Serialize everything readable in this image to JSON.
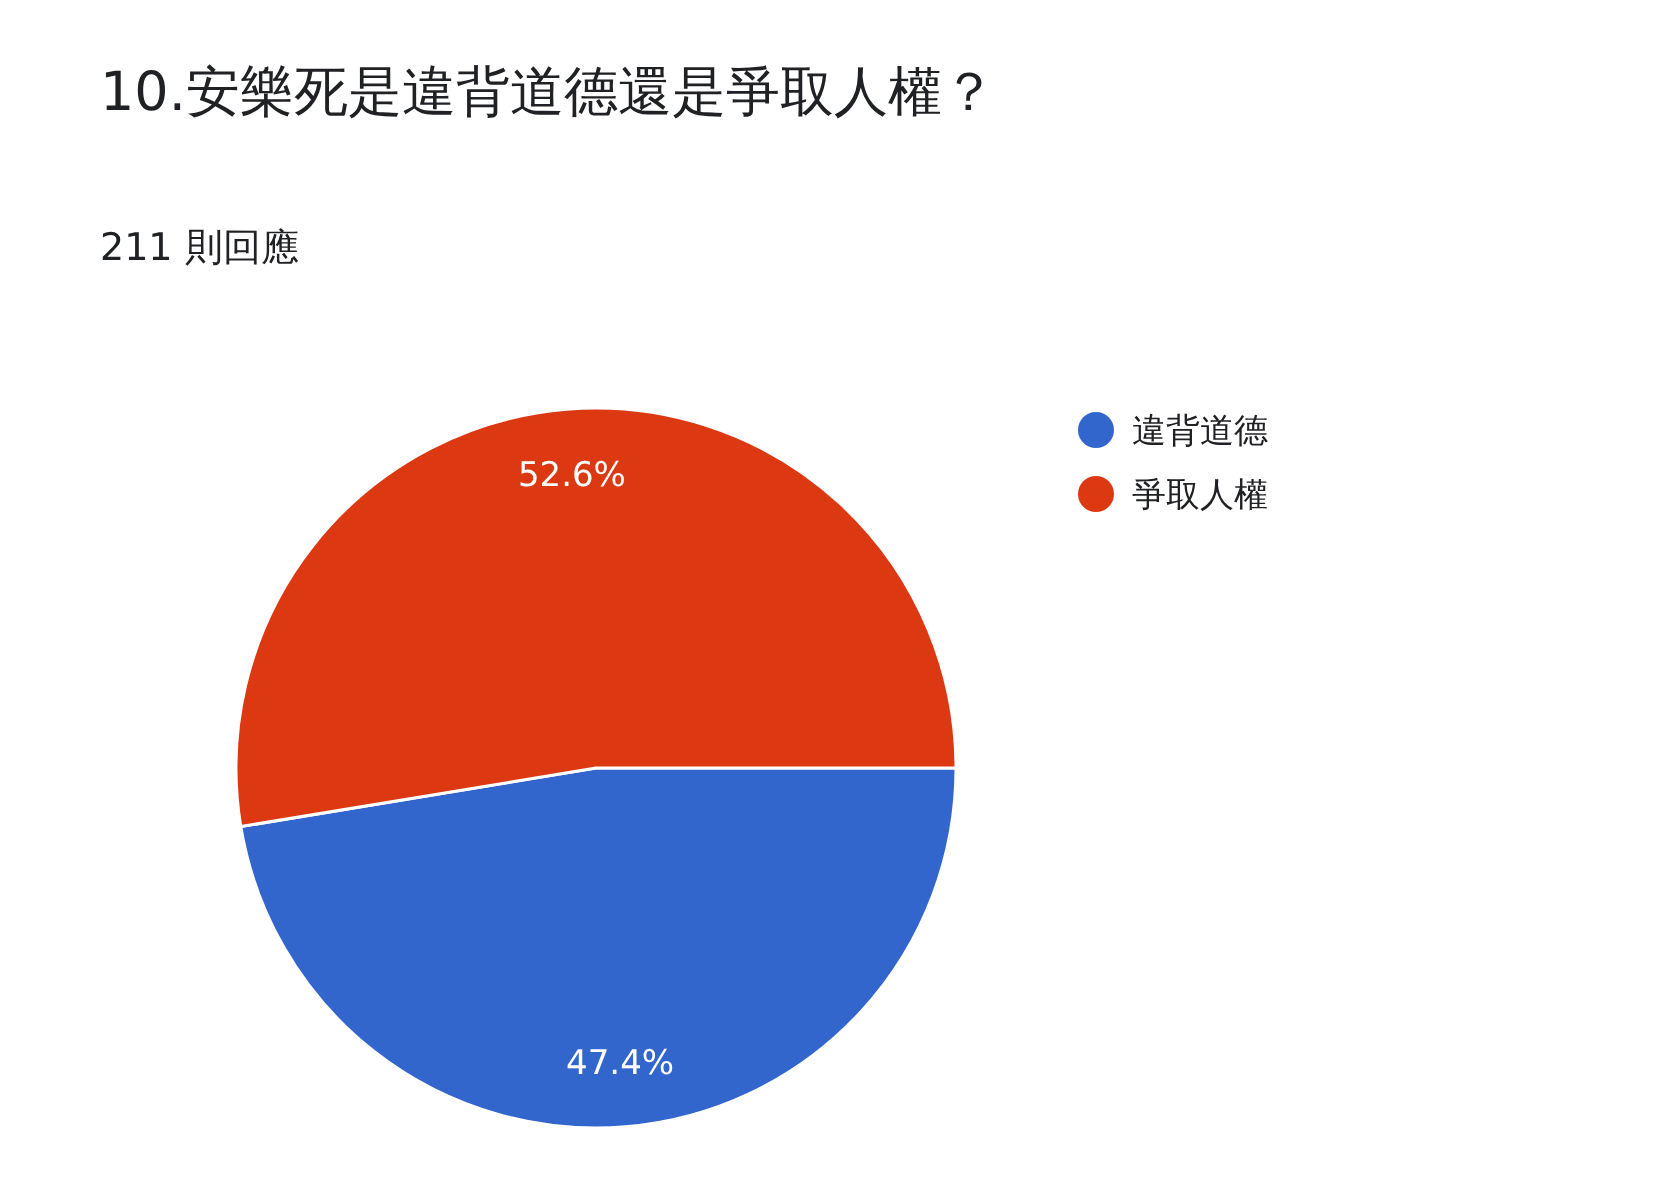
{
  "chart_data": {
    "type": "pie",
    "title": "10.安樂死是違背道德還是爭取人權？",
    "subtitle": "211 則回應",
    "categories": [
      "違背道德",
      "爭取人權"
    ],
    "values": [
      47.4,
      52.6
    ],
    "colors": [
      "#3366cc",
      "#dc3912"
    ],
    "value_labels": [
      "47.4%",
      "52.6%"
    ],
    "legend": "top right"
  }
}
